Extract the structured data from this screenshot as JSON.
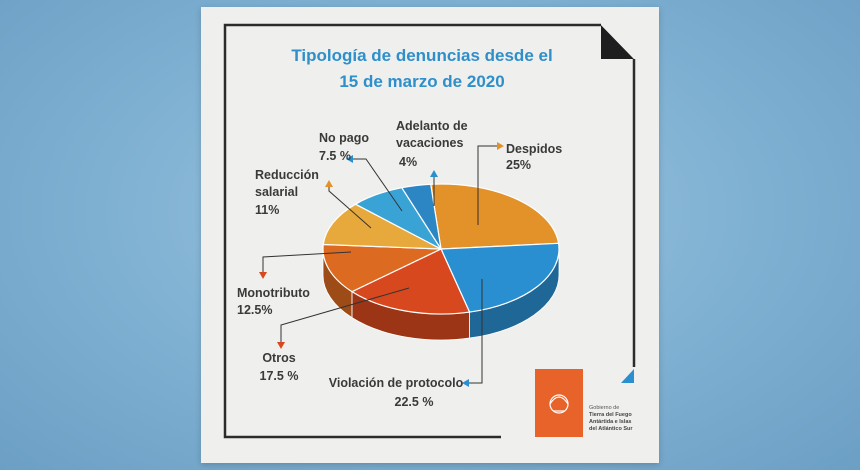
{
  "poster": {
    "title_line1": "Tipología de denuncias desde el",
    "title_line2": "15 de marzo de 2020",
    "logo_text": [
      "Gobierno de",
      "Tierra del Fuego",
      "Antártida e Islas",
      "del Atlántico Sur"
    ]
  },
  "colors": {
    "title": "#2e8fca",
    "text": "#3a3a3a",
    "frame": "#2b2b2b",
    "orange": "#e3922a",
    "blue": "#2a8fd1",
    "red": "#d8481e",
    "red_dark": "#c5401a",
    "yellow": "#e7a93c",
    "light_blue": "#3aa3d6",
    "logo_bg": "#e8632a"
  },
  "chart_data": {
    "type": "pie",
    "title": "Tipología de denuncias desde el 15 de marzo de 2020",
    "slices": [
      {
        "label": "Despidos",
        "value": 25,
        "display": "25%",
        "color": "#e3922a",
        "arrow": "#e3922a"
      },
      {
        "label": "Violación de protocolo",
        "value": 22.5,
        "display": "22.5 %",
        "color": "#2a8fd1",
        "arrow": "#2a8fd1"
      },
      {
        "label": "Otros",
        "value": 17.5,
        "display": "17.5 %",
        "color": "#d8481e",
        "arrow": "#d8481e"
      },
      {
        "label": "Monotributo",
        "value": 12.5,
        "display": "12.5%",
        "color": "#dc6a20",
        "arrow": "#d8481e"
      },
      {
        "label": "Reducción salarial",
        "value": 11,
        "display": "11%",
        "color": "#e7a93c",
        "arrow": "#e3922a"
      },
      {
        "label": "No pago",
        "value": 7.5,
        "display": "7.5 %",
        "color": "#3aa3d6",
        "arrow": "#2a8fd1"
      },
      {
        "label": "Adelanto de vacaciones",
        "value": 4,
        "display": "4%",
        "color": "#2d86c4",
        "arrow": "#2a8fd1"
      }
    ]
  }
}
